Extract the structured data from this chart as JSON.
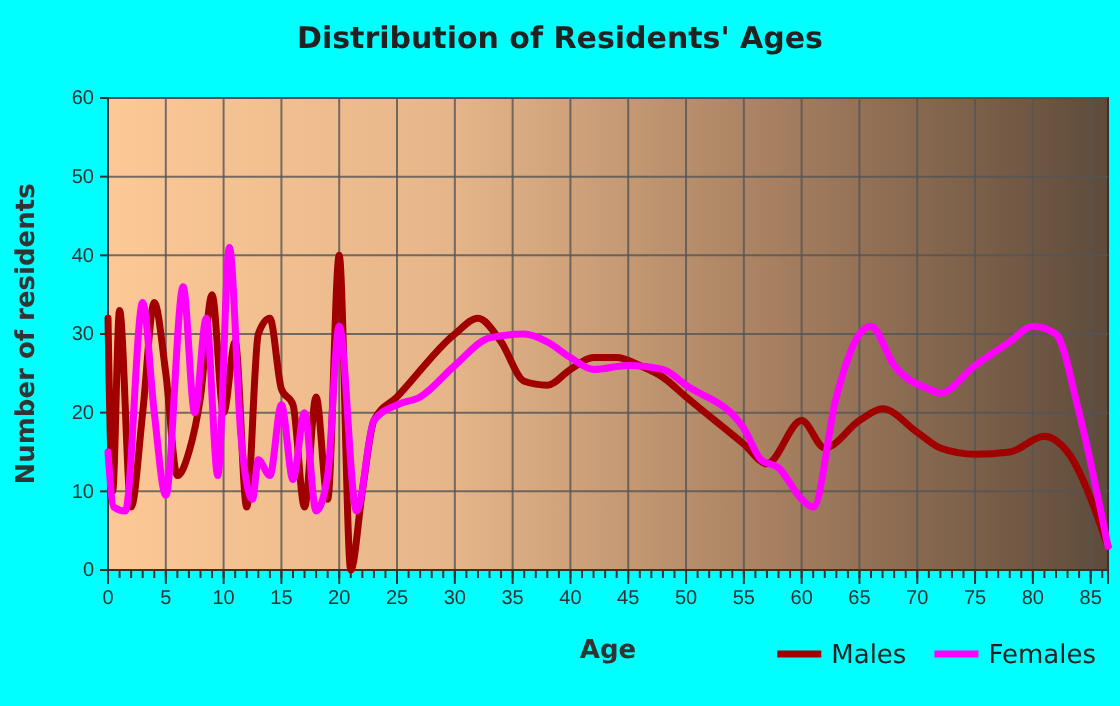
{
  "chart_data": {
    "type": "line",
    "title": "Distribution of Residents' Ages",
    "xlabel": "Age",
    "ylabel": "Number of residents",
    "xlim": [
      0,
      86.5
    ],
    "xticks": [
      0,
      5,
      10,
      15,
      20,
      25,
      30,
      35,
      40,
      45,
      50,
      55,
      60,
      65,
      70,
      75,
      80,
      85
    ],
    "ylim": [
      0,
      60
    ],
    "yticks": [
      0,
      10,
      20,
      30,
      40,
      50,
      60
    ],
    "grid": true,
    "legend": "bottom right",
    "marker": "none",
    "series": [
      {
        "name": "Males",
        "color": "#a00000",
        "x": [
          0,
          0.4,
          1,
          2,
          3,
          4,
          5,
          6,
          7,
          8,
          9,
          10,
          11,
          12,
          13,
          14,
          15,
          16,
          17,
          18,
          19,
          20,
          21,
          22,
          23,
          25,
          30,
          32,
          34,
          36,
          38,
          40,
          42,
          44,
          46,
          48,
          50,
          55,
          57,
          60,
          62,
          65,
          67,
          70,
          72,
          75,
          78,
          81,
          83,
          86.5
        ],
        "values": [
          32,
          10,
          33,
          8,
          20,
          34,
          25,
          12,
          15,
          22,
          35,
          20,
          29,
          8,
          30,
          32,
          23,
          21,
          8,
          22,
          9,
          40,
          0,
          10,
          19,
          22,
          30,
          32,
          29,
          24,
          23.5,
          25.5,
          27,
          27,
          26,
          24.5,
          22,
          16,
          13.5,
          19,
          15.5,
          19,
          20.5,
          17.5,
          15.5,
          14.7,
          15,
          17,
          15,
          3
        ]
      },
      {
        "name": "Females",
        "color": "#ff00ff",
        "x": [
          0,
          0.5,
          1.5,
          3,
          4,
          5,
          6.5,
          7.5,
          8.5,
          9.5,
          10.5,
          11.5,
          12.5,
          13,
          14,
          15,
          16,
          17,
          18,
          19,
          20,
          21.5,
          23,
          25,
          27,
          30,
          33,
          36,
          38,
          40,
          42,
          45,
          48,
          50,
          55,
          56.5,
          58,
          60,
          61,
          63,
          65,
          66,
          68,
          71,
          72,
          75,
          78,
          80,
          82,
          84,
          86.5
        ],
        "values": [
          15,
          8,
          7.5,
          34,
          20,
          9.5,
          36,
          20,
          32,
          12,
          41,
          17,
          9,
          14,
          12,
          21,
          11.5,
          20,
          7.5,
          12,
          31,
          7.5,
          19,
          21,
          22,
          26,
          29.5,
          30,
          29,
          27,
          25.5,
          26,
          25.5,
          23.5,
          18,
          14,
          13,
          9,
          8,
          22,
          30,
          31,
          26,
          23,
          22.5,
          26,
          29,
          31,
          30,
          20,
          3
        ]
      }
    ]
  }
}
